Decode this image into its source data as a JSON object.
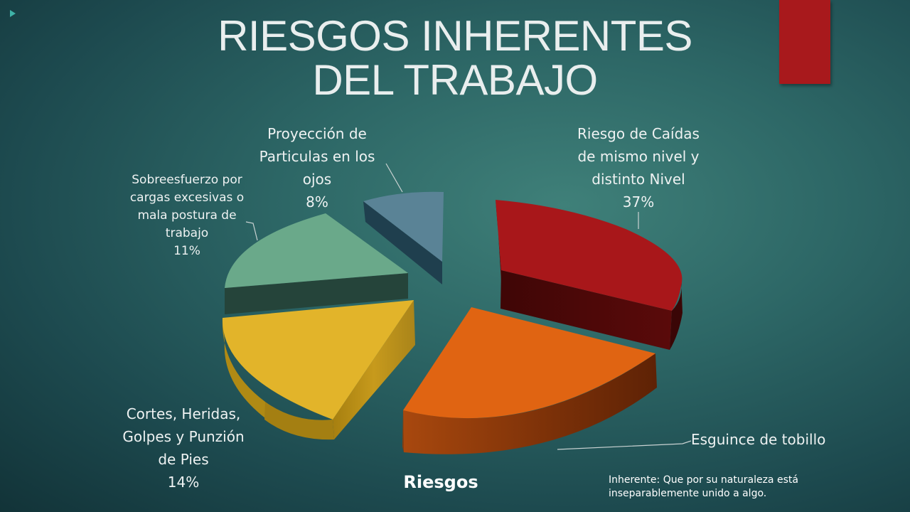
{
  "slide": {
    "title_line1": "RIESGOS INHERENTES",
    "title_line2": "DEL TRABAJO",
    "note": "Inherente: Que por su naturaleza está inseparablemente unido a algo.",
    "accent_color": "#a8191c",
    "background_color": "#2d6766"
  },
  "chart_data": {
    "type": "pie",
    "title": "Riesgos",
    "three_d": true,
    "exploded": true,
    "slices": [
      {
        "label": "Riesgo de Caídas de mismo nivel y distinto Nivel",
        "label_lines": [
          "Riesgo de Caídas",
          "de mismo nivel y",
          "distinto Nivel"
        ],
        "value": 37,
        "value_label": "37%",
        "color": "#a8171a"
      },
      {
        "label": "Esguince de tobillo",
        "label_lines": [
          "Esguince de tobillo"
        ],
        "value": 29,
        "value_label": "",
        "color": "#e06412"
      },
      {
        "label": "Cortes, Heridas, Golpes y Punzión de Pies",
        "label_lines": [
          "Cortes, Heridas,",
          "Golpes y Punzión",
          "de Pies"
        ],
        "value": 14,
        "value_label": "14%",
        "color": "#e2b42a"
      },
      {
        "label": "Sobreesfuerzo por cargas excesivas o mala postura de trabajo",
        "label_lines": [
          "Sobreesfuerzo por",
          "cargas excesivas o",
          "mala postura de",
          "trabajo"
        ],
        "value": 11,
        "value_label": "11%",
        "color": "#6aa98a"
      },
      {
        "label": "Proyección de Particulas en los ojos",
        "label_lines": [
          "Proyección de",
          "Particulas en los",
          "ojos"
        ],
        "value": 8,
        "value_label": "8%",
        "color": "#5a8396"
      }
    ]
  }
}
